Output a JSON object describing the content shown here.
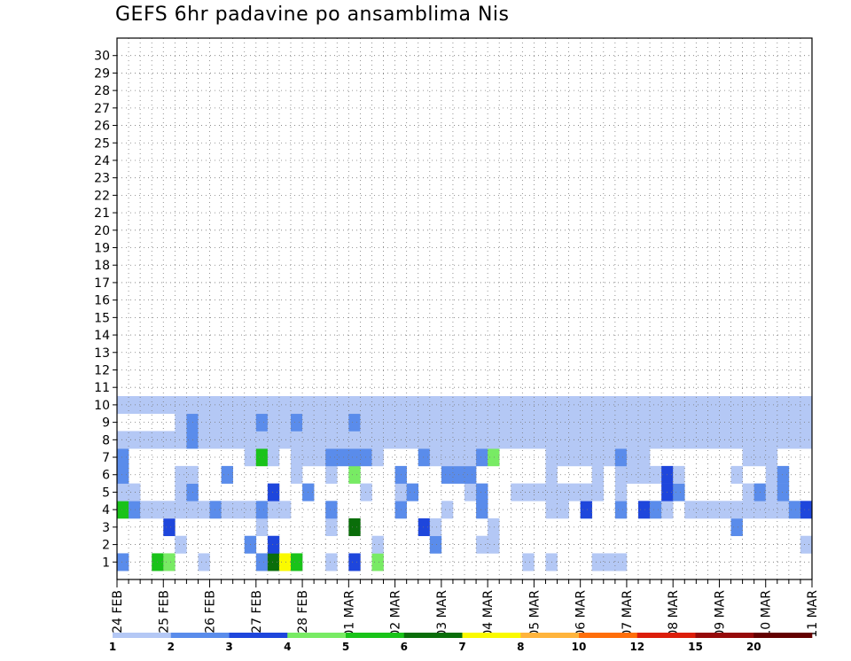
{
  "chart_data": {
    "type": "heatmap",
    "title": "GEFS 6hr padavine po ansamblima Nis",
    "xlabel": "",
    "ylabel": "",
    "x_ticks": [
      "24 FEB",
      "25 FEB",
      "26 FEB",
      "27 FEB",
      "28 FEB",
      "01 MAR",
      "02 MAR",
      "03 MAR",
      "04 MAR",
      "05 MAR",
      "06 MAR",
      "07 MAR",
      "08 MAR",
      "09 MAR",
      "10 MAR",
      "11 MAR"
    ],
    "xlim_steps": [
      0,
      60
    ],
    "steps_per_day": 4,
    "members": [
      1,
      30
    ],
    "grid": true,
    "legend_position": "bottom",
    "levels": [
      1,
      2,
      3,
      4,
      5,
      6,
      7,
      8,
      10,
      12,
      15,
      20
    ],
    "colors": [
      "#b4c8f5",
      "#5a8ceb",
      "#1e46dc",
      "#78eb64",
      "#19c319",
      "#0a6e0a",
      "#fafa00",
      "#ffb43c",
      "#ff6e0a",
      "#dc1e0a",
      "#960a0a",
      "#640000"
    ],
    "cells": [
      [
        1,
        0,
        2
      ],
      [
        1,
        3,
        5
      ],
      [
        1,
        4,
        4
      ],
      [
        1,
        7,
        1
      ],
      [
        1,
        12,
        2
      ],
      [
        1,
        13,
        6
      ],
      [
        1,
        14,
        7
      ],
      [
        1,
        15,
        5
      ],
      [
        1,
        18,
        1
      ],
      [
        1,
        20,
        3
      ],
      [
        1,
        22,
        4
      ],
      [
        1,
        35,
        1
      ],
      [
        1,
        37,
        1
      ],
      [
        1,
        41,
        1
      ],
      [
        1,
        42,
        1
      ],
      [
        1,
        43,
        1
      ],
      [
        2,
        5,
        1
      ],
      [
        2,
        11,
        2
      ],
      [
        2,
        13,
        3
      ],
      [
        2,
        22,
        1
      ],
      [
        2,
        27,
        2
      ],
      [
        2,
        31,
        1
      ],
      [
        2,
        32,
        1
      ],
      [
        2,
        59,
        1
      ],
      [
        3,
        4,
        3
      ],
      [
        3,
        12,
        1
      ],
      [
        3,
        18,
        1
      ],
      [
        3,
        20,
        6
      ],
      [
        3,
        26,
        3
      ],
      [
        3,
        27,
        1
      ],
      [
        3,
        32,
        1
      ],
      [
        3,
        53,
        2
      ],
      [
        4,
        0,
        5
      ],
      [
        4,
        1,
        2
      ],
      [
        4,
        2,
        1
      ],
      [
        4,
        3,
        1
      ],
      [
        4,
        4,
        1
      ],
      [
        4,
        5,
        1
      ],
      [
        4,
        6,
        1
      ],
      [
        4,
        7,
        1
      ],
      [
        4,
        8,
        2
      ],
      [
        4,
        9,
        1
      ],
      [
        4,
        10,
        1
      ],
      [
        4,
        11,
        1
      ],
      [
        4,
        12,
        2
      ],
      [
        4,
        13,
        1
      ],
      [
        4,
        14,
        1
      ],
      [
        4,
        18,
        2
      ],
      [
        4,
        24,
        2
      ],
      [
        4,
        28,
        1
      ],
      [
        4,
        31,
        2
      ],
      [
        4,
        37,
        1
      ],
      [
        4,
        38,
        1
      ],
      [
        4,
        40,
        3
      ],
      [
        4,
        43,
        2
      ],
      [
        4,
        45,
        3
      ],
      [
        4,
        46,
        2
      ],
      [
        4,
        47,
        1
      ],
      [
        4,
        49,
        1
      ],
      [
        4,
        50,
        1
      ],
      [
        4,
        51,
        1
      ],
      [
        4,
        52,
        1
      ],
      [
        4,
        53,
        1
      ],
      [
        4,
        54,
        1
      ],
      [
        4,
        55,
        1
      ],
      [
        4,
        56,
        1
      ],
      [
        4,
        57,
        1
      ],
      [
        4,
        58,
        2
      ],
      [
        4,
        59,
        3
      ],
      [
        5,
        0,
        1
      ],
      [
        5,
        1,
        1
      ],
      [
        5,
        5,
        1
      ],
      [
        5,
        6,
        2
      ],
      [
        5,
        13,
        3
      ],
      [
        5,
        16,
        2
      ],
      [
        5,
        21,
        1
      ],
      [
        5,
        24,
        1
      ],
      [
        5,
        25,
        2
      ],
      [
        5,
        30,
        1
      ],
      [
        5,
        31,
        2
      ],
      [
        5,
        34,
        1
      ],
      [
        5,
        35,
        1
      ],
      [
        5,
        36,
        1
      ],
      [
        5,
        37,
        1
      ],
      [
        5,
        38,
        1
      ],
      [
        5,
        39,
        1
      ],
      [
        5,
        40,
        1
      ],
      [
        5,
        41,
        1
      ],
      [
        5,
        43,
        1
      ],
      [
        5,
        47,
        3
      ],
      [
        5,
        48,
        2
      ],
      [
        5,
        54,
        1
      ],
      [
        5,
        55,
        2
      ],
      [
        5,
        56,
        1
      ],
      [
        5,
        57,
        2
      ],
      [
        6,
        0,
        2
      ],
      [
        6,
        5,
        1
      ],
      [
        6,
        6,
        1
      ],
      [
        6,
        9,
        2
      ],
      [
        6,
        15,
        1
      ],
      [
        6,
        18,
        1
      ],
      [
        6,
        20,
        4
      ],
      [
        6,
        24,
        2
      ],
      [
        6,
        28,
        2
      ],
      [
        6,
        29,
        2
      ],
      [
        6,
        30,
        2
      ],
      [
        6,
        37,
        1
      ],
      [
        6,
        41,
        1
      ],
      [
        6,
        43,
        1
      ],
      [
        6,
        44,
        1
      ],
      [
        6,
        45,
        1
      ],
      [
        6,
        46,
        1
      ],
      [
        6,
        47,
        3
      ],
      [
        6,
        48,
        1
      ],
      [
        6,
        53,
        1
      ],
      [
        6,
        56,
        1
      ],
      [
        6,
        57,
        2
      ],
      [
        7,
        0,
        2
      ],
      [
        7,
        11,
        1
      ],
      [
        7,
        12,
        5
      ],
      [
        7,
        13,
        1
      ],
      [
        7,
        15,
        1
      ],
      [
        7,
        16,
        1
      ],
      [
        7,
        17,
        1
      ],
      [
        7,
        18,
        2
      ],
      [
        7,
        19,
        2
      ],
      [
        7,
        20,
        2
      ],
      [
        7,
        21,
        2
      ],
      [
        7,
        22,
        1
      ],
      [
        7,
        26,
        2
      ],
      [
        7,
        27,
        1
      ],
      [
        7,
        28,
        1
      ],
      [
        7,
        29,
        1
      ],
      [
        7,
        30,
        1
      ],
      [
        7,
        31,
        2
      ],
      [
        7,
        32,
        4
      ],
      [
        7,
        37,
        1
      ],
      [
        7,
        38,
        1
      ],
      [
        7,
        39,
        1
      ],
      [
        7,
        40,
        1
      ],
      [
        7,
        41,
        1
      ],
      [
        7,
        42,
        1
      ],
      [
        7,
        43,
        2
      ],
      [
        7,
        44,
        1
      ],
      [
        7,
        45,
        1
      ],
      [
        7,
        54,
        1
      ],
      [
        7,
        55,
        1
      ],
      [
        7,
        56,
        1
      ],
      [
        8,
        0,
        1
      ],
      [
        8,
        1,
        1
      ],
      [
        8,
        2,
        1
      ],
      [
        8,
        3,
        1
      ],
      [
        8,
        4,
        1
      ],
      [
        8,
        5,
        1
      ],
      [
        8,
        6,
        2
      ],
      [
        8,
        7,
        1
      ],
      [
        8,
        8,
        1
      ],
      [
        8,
        9,
        1
      ],
      [
        8,
        10,
        1
      ],
      [
        8,
        11,
        1
      ],
      [
        8,
        12,
        1
      ],
      [
        8,
        13,
        1
      ],
      [
        8,
        14,
        1
      ],
      [
        8,
        15,
        1
      ],
      [
        8,
        16,
        1
      ],
      [
        8,
        17,
        1
      ],
      [
        8,
        18,
        1
      ],
      [
        8,
        19,
        1
      ],
      [
        8,
        20,
        1
      ],
      [
        8,
        21,
        1
      ],
      [
        8,
        22,
        1
      ],
      [
        8,
        23,
        1
      ],
      [
        8,
        24,
        1
      ],
      [
        8,
        25,
        1
      ],
      [
        8,
        26,
        1
      ],
      [
        8,
        27,
        1
      ],
      [
        8,
        28,
        1
      ],
      [
        8,
        29,
        1
      ],
      [
        8,
        30,
        1
      ],
      [
        8,
        31,
        1
      ],
      [
        8,
        32,
        1
      ],
      [
        8,
        33,
        1
      ],
      [
        8,
        34,
        1
      ],
      [
        8,
        35,
        1
      ],
      [
        8,
        36,
        1
      ],
      [
        8,
        37,
        1
      ],
      [
        8,
        38,
        1
      ],
      [
        8,
        39,
        1
      ],
      [
        8,
        40,
        1
      ],
      [
        8,
        41,
        1
      ],
      [
        8,
        42,
        1
      ],
      [
        8,
        43,
        1
      ],
      [
        8,
        44,
        1
      ],
      [
        8,
        45,
        1
      ],
      [
        8,
        46,
        1
      ],
      [
        8,
        47,
        1
      ],
      [
        8,
        48,
        1
      ],
      [
        8,
        49,
        1
      ],
      [
        8,
        50,
        1
      ],
      [
        8,
        51,
        1
      ],
      [
        8,
        52,
        1
      ],
      [
        8,
        53,
        1
      ],
      [
        8,
        54,
        1
      ],
      [
        8,
        55,
        1
      ],
      [
        8,
        56,
        1
      ],
      [
        8,
        57,
        1
      ],
      [
        8,
        58,
        1
      ],
      [
        8,
        59,
        1
      ],
      [
        9,
        5,
        1
      ],
      [
        9,
        6,
        2
      ],
      [
        9,
        7,
        1
      ],
      [
        9,
        8,
        1
      ],
      [
        9,
        9,
        1
      ],
      [
        9,
        10,
        1
      ],
      [
        9,
        11,
        1
      ],
      [
        9,
        12,
        2
      ],
      [
        9,
        13,
        1
      ],
      [
        9,
        14,
        1
      ],
      [
        9,
        15,
        2
      ],
      [
        9,
        16,
        1
      ],
      [
        9,
        17,
        1
      ],
      [
        9,
        18,
        1
      ],
      [
        9,
        19,
        1
      ],
      [
        9,
        20,
        2
      ],
      [
        9,
        21,
        1
      ],
      [
        9,
        22,
        1
      ],
      [
        9,
        23,
        1
      ],
      [
        9,
        24,
        1
      ],
      [
        9,
        25,
        1
      ],
      [
        9,
        26,
        1
      ],
      [
        9,
        27,
        1
      ],
      [
        9,
        28,
        1
      ],
      [
        9,
        29,
        1
      ],
      [
        9,
        30,
        1
      ],
      [
        9,
        31,
        1
      ],
      [
        9,
        32,
        1
      ],
      [
        9,
        33,
        1
      ],
      [
        9,
        34,
        1
      ],
      [
        9,
        35,
        1
      ],
      [
        9,
        36,
        1
      ],
      [
        9,
        37,
        1
      ],
      [
        9,
        38,
        1
      ],
      [
        9,
        39,
        1
      ],
      [
        9,
        40,
        1
      ],
      [
        9,
        41,
        1
      ],
      [
        9,
        42,
        1
      ],
      [
        9,
        43,
        1
      ],
      [
        9,
        44,
        1
      ],
      [
        9,
        45,
        1
      ],
      [
        9,
        46,
        1
      ],
      [
        9,
        47,
        1
      ],
      [
        9,
        48,
        1
      ],
      [
        9,
        49,
        1
      ],
      [
        9,
        50,
        1
      ],
      [
        9,
        51,
        1
      ],
      [
        9,
        52,
        1
      ],
      [
        9,
        53,
        1
      ],
      [
        9,
        54,
        1
      ],
      [
        9,
        55,
        1
      ],
      [
        9,
        56,
        1
      ],
      [
        9,
        57,
        1
      ],
      [
        9,
        58,
        1
      ],
      [
        9,
        59,
        1
      ],
      [
        10,
        0,
        1
      ],
      [
        10,
        1,
        1
      ],
      [
        10,
        2,
        1
      ],
      [
        10,
        3,
        1
      ],
      [
        10,
        4,
        1
      ],
      [
        10,
        5,
        1
      ],
      [
        10,
        6,
        1
      ],
      [
        10,
        7,
        1
      ],
      [
        10,
        8,
        1
      ],
      [
        10,
        9,
        1
      ],
      [
        10,
        10,
        1
      ],
      [
        10,
        11,
        1
      ],
      [
        10,
        12,
        1
      ],
      [
        10,
        13,
        1
      ],
      [
        10,
        14,
        1
      ],
      [
        10,
        15,
        1
      ],
      [
        10,
        16,
        1
      ],
      [
        10,
        17,
        1
      ],
      [
        10,
        18,
        1
      ],
      [
        10,
        19,
        1
      ],
      [
        10,
        20,
        1
      ],
      [
        10,
        21,
        1
      ],
      [
        10,
        22,
        1
      ],
      [
        10,
        23,
        1
      ],
      [
        10,
        24,
        1
      ],
      [
        10,
        25,
        1
      ],
      [
        10,
        26,
        1
      ],
      [
        10,
        27,
        1
      ],
      [
        10,
        28,
        1
      ],
      [
        10,
        29,
        1
      ],
      [
        10,
        30,
        1
      ],
      [
        10,
        31,
        1
      ],
      [
        10,
        32,
        1
      ],
      [
        10,
        33,
        1
      ],
      [
        10,
        34,
        1
      ],
      [
        10,
        35,
        1
      ],
      [
        10,
        36,
        1
      ],
      [
        10,
        37,
        1
      ],
      [
        10,
        38,
        1
      ],
      [
        10,
        39,
        1
      ],
      [
        10,
        40,
        1
      ],
      [
        10,
        41,
        1
      ],
      [
        10,
        42,
        1
      ],
      [
        10,
        43,
        1
      ],
      [
        10,
        44,
        1
      ],
      [
        10,
        45,
        1
      ],
      [
        10,
        46,
        1
      ],
      [
        10,
        47,
        1
      ],
      [
        10,
        48,
        1
      ],
      [
        10,
        49,
        1
      ],
      [
        10,
        50,
        1
      ],
      [
        10,
        51,
        1
      ],
      [
        10,
        52,
        1
      ],
      [
        10,
        53,
        1
      ],
      [
        10,
        54,
        1
      ],
      [
        10,
        55,
        1
      ],
      [
        10,
        56,
        1
      ],
      [
        10,
        57,
        1
      ],
      [
        10,
        58,
        1
      ],
      [
        10,
        59,
        1
      ]
    ]
  }
}
